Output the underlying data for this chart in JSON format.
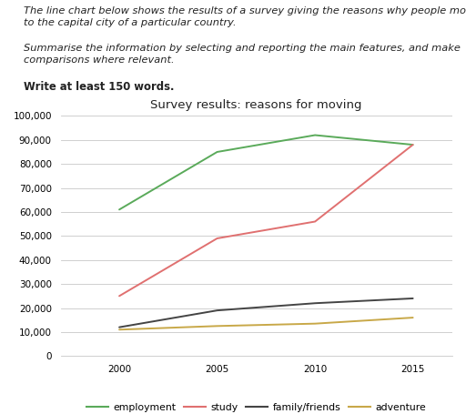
{
  "title": "Survey results: reasons for moving",
  "years": [
    2000,
    2005,
    2010,
    2015
  ],
  "series": {
    "employment": {
      "values": [
        61000,
        85000,
        92000,
        88000
      ],
      "color": "#5aaa5a"
    },
    "study": {
      "values": [
        25000,
        49000,
        56000,
        88000
      ],
      "color": "#e07070"
    },
    "family/friends": {
      "values": [
        12000,
        19000,
        22000,
        24000
      ],
      "color": "#444444"
    },
    "adventure": {
      "values": [
        11000,
        12500,
        13500,
        16000
      ],
      "color": "#c8a848"
    }
  },
  "ylim": [
    0,
    100000
  ],
  "yticks": [
    0,
    10000,
    20000,
    30000,
    40000,
    50000,
    60000,
    70000,
    80000,
    90000,
    100000
  ],
  "xticks": [
    2000,
    2005,
    2010,
    2015
  ],
  "header_text": "The line chart below shows the results of a survey giving the reasons why people moved\nto the capital city of a particular country.",
  "subheader_text": "Summarise the information by selecting and reporting the main features, and make\ncomparisons where relevant.",
  "bold_line": "Write at least 150 words.",
  "background_color": "#ffffff",
  "grid_color": "#c8c8c8",
  "text_color": "#222222",
  "header_fontsize": 8.2,
  "subheader_fontsize": 8.2,
  "bold_fontsize": 8.4,
  "title_fontsize": 9.5,
  "tick_fontsize": 7.5,
  "legend_fontsize": 7.8
}
